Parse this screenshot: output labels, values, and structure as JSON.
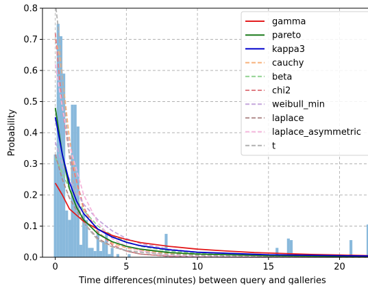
{
  "chart_data": {
    "type": "bar",
    "title": "",
    "xlabel": "Time differences(minutes) between query and galleries",
    "ylabel": "Probability",
    "xlim": [
      -0.9,
      22
    ],
    "ylim": [
      0,
      0.8
    ],
    "xticks": [
      0,
      5,
      10,
      15,
      20
    ],
    "yticks": [
      0.0,
      0.1,
      0.2,
      0.3,
      0.4,
      0.5,
      0.6,
      0.7,
      0.8
    ],
    "grid": true,
    "legend_position": "top-right",
    "histogram": {
      "color": "#89b9dc",
      "bin_width": 0.2,
      "bins": [
        {
          "x": -0.1,
          "value": 0.33
        },
        {
          "x": 0.1,
          "value": 0.75
        },
        {
          "x": 0.3,
          "value": 0.71
        },
        {
          "x": 0.5,
          "value": 0.59
        },
        {
          "x": 0.7,
          "value": 0.15
        },
        {
          "x": 0.9,
          "value": 0.12
        },
        {
          "x": 1.1,
          "value": 0.49
        },
        {
          "x": 1.3,
          "value": 0.49
        },
        {
          "x": 1.5,
          "value": 0.42
        },
        {
          "x": 1.7,
          "value": 0.04
        },
        {
          "x": 1.9,
          "value": 0.14
        },
        {
          "x": 2.1,
          "value": 0.12
        },
        {
          "x": 2.3,
          "value": 0.03
        },
        {
          "x": 2.5,
          "value": 0.03
        },
        {
          "x": 2.7,
          "value": 0.02
        },
        {
          "x": 2.9,
          "value": 0.085
        },
        {
          "x": 3.1,
          "value": 0.02
        },
        {
          "x": 3.3,
          "value": 0.05
        },
        {
          "x": 3.5,
          "value": 0.08
        },
        {
          "x": 3.7,
          "value": 0.01
        },
        {
          "x": 3.9,
          "value": 0.03
        },
        {
          "x": 4.3,
          "value": 0.01
        },
        {
          "x": 5.1,
          "value": 0.01
        },
        {
          "x": 7.7,
          "value": 0.075
        },
        {
          "x": 15.5,
          "value": 0.03
        },
        {
          "x": 16.3,
          "value": 0.06
        },
        {
          "x": 16.5,
          "value": 0.055
        },
        {
          "x": 20.7,
          "value": 0.055
        },
        {
          "x": 21.9,
          "value": 0.105
        }
      ]
    },
    "series": [
      {
        "name": "gamma",
        "color": "#e31a1c",
        "style": "solid",
        "x": [
          0,
          0.5,
          1,
          2,
          3,
          4,
          5,
          6,
          8,
          10,
          12,
          14,
          16,
          18,
          20,
          22
        ],
        "values": [
          0.238,
          0.2,
          0.155,
          0.115,
          0.09,
          0.07,
          0.057,
          0.047,
          0.035,
          0.026,
          0.02,
          0.015,
          0.012,
          0.009,
          0.007,
          0.005
        ]
      },
      {
        "name": "pareto",
        "color": "#1a7a1a",
        "style": "solid",
        "x": [
          0,
          0.5,
          1,
          1.5,
          2,
          3,
          4,
          5,
          6,
          8,
          10,
          15,
          22
        ],
        "values": [
          0.48,
          0.33,
          0.22,
          0.16,
          0.12,
          0.075,
          0.05,
          0.035,
          0.026,
          0.015,
          0.01,
          0.005,
          0.002
        ]
      },
      {
        "name": "kappa3",
        "color": "#0000cc",
        "style": "solid",
        "x": [
          0,
          0.5,
          1,
          1.5,
          2,
          3,
          4,
          5,
          6,
          8,
          10,
          15,
          22
        ],
        "values": [
          0.45,
          0.33,
          0.24,
          0.18,
          0.14,
          0.09,
          0.065,
          0.048,
          0.037,
          0.024,
          0.016,
          0.008,
          0.004
        ]
      },
      {
        "name": "cauchy",
        "color": "#f7b07a",
        "style": "dashed",
        "x": [
          0,
          0.3,
          0.7,
          1,
          1.5,
          2,
          3,
          4,
          5,
          6,
          8,
          10,
          15,
          22
        ],
        "values": [
          0.7,
          0.65,
          0.5,
          0.38,
          0.24,
          0.15,
          0.08,
          0.045,
          0.03,
          0.022,
          0.012,
          0.008,
          0.004,
          0.002
        ]
      },
      {
        "name": "beta",
        "color": "#8fd18f",
        "style": "dashed",
        "x": [
          0,
          0.5,
          1,
          2,
          3,
          4,
          5,
          6,
          8,
          10,
          15,
          22
        ],
        "values": [
          0.32,
          0.27,
          0.22,
          0.15,
          0.1,
          0.07,
          0.05,
          0.035,
          0.02,
          0.012,
          0.004,
          0.0
        ]
      },
      {
        "name": "chi2",
        "color": "#e07d84",
        "style": "dashed",
        "x": [
          0,
          0.5,
          1,
          2,
          3,
          4,
          5,
          6,
          8,
          10,
          15,
          22
        ],
        "values": [
          0.72,
          0.48,
          0.33,
          0.16,
          0.08,
          0.04,
          0.02,
          0.01,
          0.003,
          0.001,
          0.0,
          0.0
        ]
      },
      {
        "name": "weibull_min",
        "color": "#c4a6dc",
        "style": "dashed",
        "x": [
          0,
          0.5,
          1,
          2,
          3,
          4,
          5,
          6,
          8,
          10,
          15,
          22
        ],
        "values": [
          0.37,
          0.3,
          0.25,
          0.17,
          0.12,
          0.085,
          0.06,
          0.044,
          0.026,
          0.016,
          0.006,
          0.002
        ]
      },
      {
        "name": "laplace",
        "color": "#b08a8a",
        "style": "dashed",
        "x": [
          0,
          0.5,
          1,
          2,
          3,
          4,
          5,
          6,
          8,
          10,
          22
        ],
        "values": [
          0.33,
          0.25,
          0.19,
          0.11,
          0.06,
          0.035,
          0.02,
          0.01,
          0.004,
          0.001,
          0.0
        ]
      },
      {
        "name": "laplace_asymmetric",
        "color": "#f4b6dc",
        "style": "dashed",
        "x": [
          0,
          0.5,
          1,
          2,
          3,
          4,
          5,
          6,
          8,
          10,
          15,
          22
        ],
        "values": [
          0.62,
          0.48,
          0.36,
          0.2,
          0.11,
          0.06,
          0.035,
          0.02,
          0.006,
          0.002,
          0.0,
          0.0
        ]
      },
      {
        "name": "t",
        "color": "#b0b0b0",
        "style": "dashed",
        "x": [
          0.05,
          0.3,
          0.6,
          1,
          1.5,
          2,
          3,
          4,
          5,
          6,
          8,
          10,
          15,
          22
        ],
        "values": [
          0.8,
          0.7,
          0.52,
          0.32,
          0.18,
          0.11,
          0.055,
          0.033,
          0.022,
          0.016,
          0.009,
          0.006,
          0.003,
          0.001
        ]
      }
    ]
  }
}
